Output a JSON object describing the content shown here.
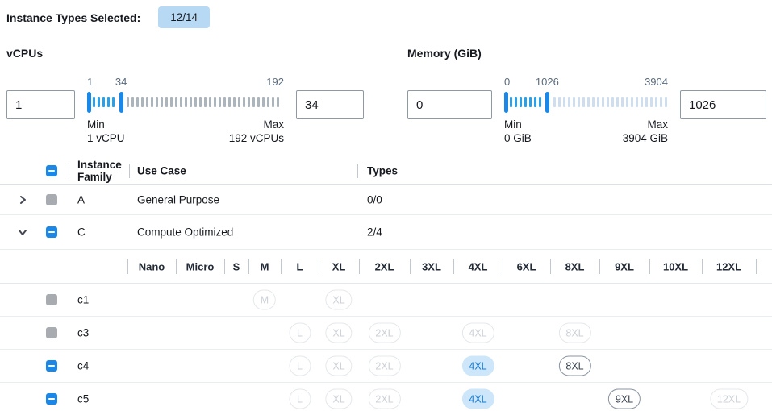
{
  "header": {
    "label": "Instance Types Selected:",
    "badge": "12/14"
  },
  "vcpus": {
    "title": "vCPUs",
    "min_value": "1",
    "max_value": "34",
    "scale": {
      "min_label": "1",
      "selected_max_label": "34",
      "max_label": "192"
    },
    "min_caption": "Min",
    "min_detail": "1 vCPU",
    "max_caption": "Max",
    "max_detail": "192 vCPUs",
    "range": {
      "min": 1,
      "max": 192,
      "selected_min": 1,
      "selected_max": 34
    }
  },
  "memory": {
    "title": "Memory (GiB)",
    "min_value": "0",
    "max_value": "1026",
    "scale": {
      "min_label": "0",
      "selected_max_label": "1026",
      "max_label": "3904"
    },
    "min_caption": "Min",
    "min_detail": "0 GiB",
    "max_caption": "Max",
    "max_detail": "3904 GiB",
    "range": {
      "min": 0,
      "max": 3904,
      "selected_min": 0,
      "selected_max": 1026
    }
  },
  "table": {
    "header": {
      "family": "Instance Family",
      "use_case": "Use Case",
      "types": "Types",
      "select_all_state": "indeterminate"
    },
    "family_rows": [
      {
        "family": "A",
        "use_case": "General Purpose",
        "types": "0/0",
        "expanded": false,
        "checkbox": "disabled"
      },
      {
        "family": "C",
        "use_case": "Compute Optimized",
        "types": "2/4",
        "expanded": true,
        "checkbox": "indeterminate"
      }
    ],
    "size_columns": [
      "Nano",
      "Micro",
      "S",
      "M",
      "L",
      "XL",
      "2XL",
      "3XL",
      "4XL",
      "6XL",
      "8XL",
      "9XL",
      "10XL",
      "12XL"
    ],
    "instance_rows": [
      {
        "name": "c1",
        "checkbox": "disabled",
        "sizes": [
          {
            "label": "M",
            "state": "disabled"
          },
          {
            "label": "XL",
            "state": "disabled"
          }
        ]
      },
      {
        "name": "c3",
        "checkbox": "disabled",
        "sizes": [
          {
            "label": "L",
            "state": "disabled"
          },
          {
            "label": "XL",
            "state": "disabled"
          },
          {
            "label": "2XL",
            "state": "disabled"
          },
          {
            "label": "4XL",
            "state": "disabled"
          },
          {
            "label": "8XL",
            "state": "disabled"
          }
        ]
      },
      {
        "name": "c4",
        "checkbox": "indeterminate",
        "sizes": [
          {
            "label": "L",
            "state": "disabled"
          },
          {
            "label": "XL",
            "state": "disabled"
          },
          {
            "label": "2XL",
            "state": "disabled"
          },
          {
            "label": "4XL",
            "state": "selected"
          },
          {
            "label": "8XL",
            "state": "available"
          }
        ]
      },
      {
        "name": "c5",
        "checkbox": "indeterminate",
        "sizes": [
          {
            "label": "L",
            "state": "disabled"
          },
          {
            "label": "XL",
            "state": "disabled"
          },
          {
            "label": "2XL",
            "state": "disabled"
          },
          {
            "label": "4XL",
            "state": "selected"
          },
          {
            "label": "9XL",
            "state": "available"
          },
          {
            "label": "12XL",
            "state": "disabled"
          }
        ]
      }
    ]
  },
  "colors": {
    "accent_blue": "#1b87e6",
    "tick_blue": "#2aa0e8",
    "tick_gray": "#adb5bc",
    "tick_light": "#cfdeee",
    "badge_bg": "#b8d9f4",
    "badge_text": "#16191f",
    "scale_label": "#5b6b7c",
    "checkbox_gray": "#a8acb1",
    "pill_selected_bg": "#cde6fa",
    "pill_selected_text": "#137bd3",
    "pill_available_border": "#8b95a1",
    "pill_disabled_border": "#e5e8ec",
    "pill_disabled_text": "#ccd1d8",
    "row_border": "#ebeef1",
    "header_border": "#dce1e6",
    "divider": "#c2c8cf"
  }
}
